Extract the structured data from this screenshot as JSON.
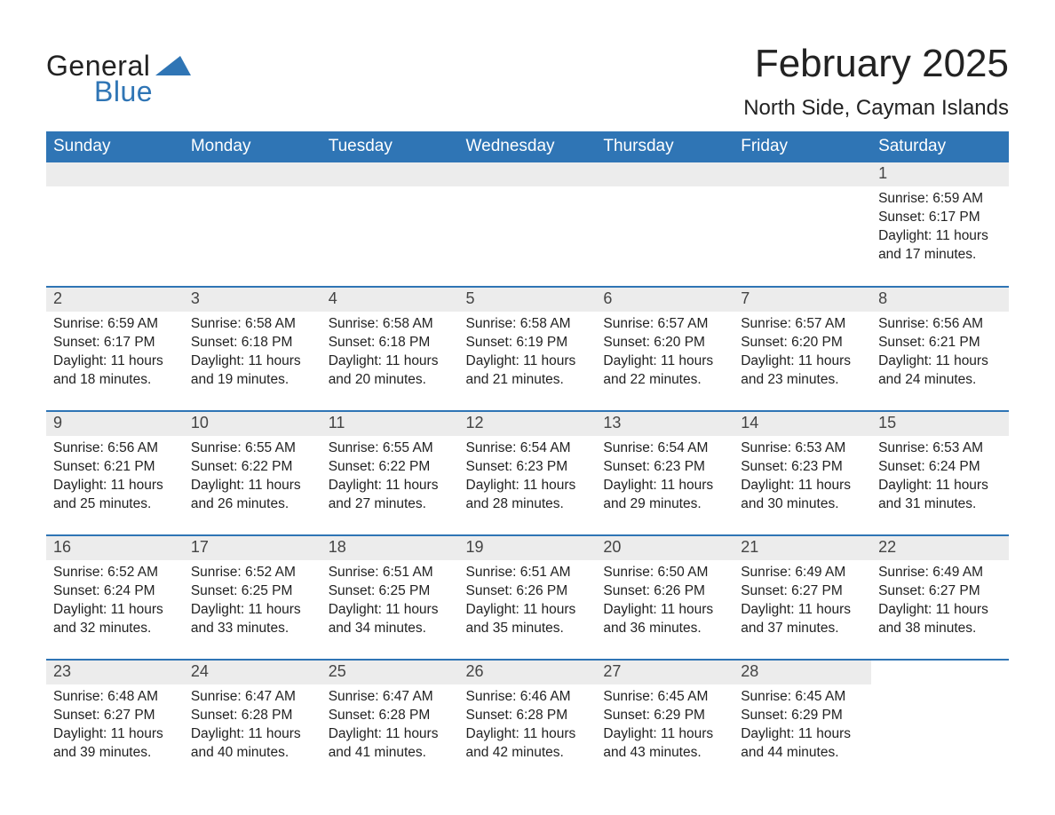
{
  "logo": {
    "text1": "General",
    "text2": "Blue"
  },
  "title": "February 2025",
  "location": "North Side, Cayman Islands",
  "colors": {
    "header_bg": "#2f75b5",
    "header_text": "#ffffff",
    "daynum_bg": "#ececec",
    "row_divider": "#2f75b5",
    "text": "#222222",
    "logo_accent": "#2f75b5"
  },
  "day_headers": [
    "Sunday",
    "Monday",
    "Tuesday",
    "Wednesday",
    "Thursday",
    "Friday",
    "Saturday"
  ],
  "weeks": [
    [
      null,
      null,
      null,
      null,
      null,
      null,
      {
        "n": "1",
        "sunrise": "Sunrise: 6:59 AM",
        "sunset": "Sunset: 6:17 PM",
        "daylight": "Daylight: 11 hours and 17 minutes."
      }
    ],
    [
      {
        "n": "2",
        "sunrise": "Sunrise: 6:59 AM",
        "sunset": "Sunset: 6:17 PM",
        "daylight": "Daylight: 11 hours and 18 minutes."
      },
      {
        "n": "3",
        "sunrise": "Sunrise: 6:58 AM",
        "sunset": "Sunset: 6:18 PM",
        "daylight": "Daylight: 11 hours and 19 minutes."
      },
      {
        "n": "4",
        "sunrise": "Sunrise: 6:58 AM",
        "sunset": "Sunset: 6:18 PM",
        "daylight": "Daylight: 11 hours and 20 minutes."
      },
      {
        "n": "5",
        "sunrise": "Sunrise: 6:58 AM",
        "sunset": "Sunset: 6:19 PM",
        "daylight": "Daylight: 11 hours and 21 minutes."
      },
      {
        "n": "6",
        "sunrise": "Sunrise: 6:57 AM",
        "sunset": "Sunset: 6:20 PM",
        "daylight": "Daylight: 11 hours and 22 minutes."
      },
      {
        "n": "7",
        "sunrise": "Sunrise: 6:57 AM",
        "sunset": "Sunset: 6:20 PM",
        "daylight": "Daylight: 11 hours and 23 minutes."
      },
      {
        "n": "8",
        "sunrise": "Sunrise: 6:56 AM",
        "sunset": "Sunset: 6:21 PM",
        "daylight": "Daylight: 11 hours and 24 minutes."
      }
    ],
    [
      {
        "n": "9",
        "sunrise": "Sunrise: 6:56 AM",
        "sunset": "Sunset: 6:21 PM",
        "daylight": "Daylight: 11 hours and 25 minutes."
      },
      {
        "n": "10",
        "sunrise": "Sunrise: 6:55 AM",
        "sunset": "Sunset: 6:22 PM",
        "daylight": "Daylight: 11 hours and 26 minutes."
      },
      {
        "n": "11",
        "sunrise": "Sunrise: 6:55 AM",
        "sunset": "Sunset: 6:22 PM",
        "daylight": "Daylight: 11 hours and 27 minutes."
      },
      {
        "n": "12",
        "sunrise": "Sunrise: 6:54 AM",
        "sunset": "Sunset: 6:23 PM",
        "daylight": "Daylight: 11 hours and 28 minutes."
      },
      {
        "n": "13",
        "sunrise": "Sunrise: 6:54 AM",
        "sunset": "Sunset: 6:23 PM",
        "daylight": "Daylight: 11 hours and 29 minutes."
      },
      {
        "n": "14",
        "sunrise": "Sunrise: 6:53 AM",
        "sunset": "Sunset: 6:23 PM",
        "daylight": "Daylight: 11 hours and 30 minutes."
      },
      {
        "n": "15",
        "sunrise": "Sunrise: 6:53 AM",
        "sunset": "Sunset: 6:24 PM",
        "daylight": "Daylight: 11 hours and 31 minutes."
      }
    ],
    [
      {
        "n": "16",
        "sunrise": "Sunrise: 6:52 AM",
        "sunset": "Sunset: 6:24 PM",
        "daylight": "Daylight: 11 hours and 32 minutes."
      },
      {
        "n": "17",
        "sunrise": "Sunrise: 6:52 AM",
        "sunset": "Sunset: 6:25 PM",
        "daylight": "Daylight: 11 hours and 33 minutes."
      },
      {
        "n": "18",
        "sunrise": "Sunrise: 6:51 AM",
        "sunset": "Sunset: 6:25 PM",
        "daylight": "Daylight: 11 hours and 34 minutes."
      },
      {
        "n": "19",
        "sunrise": "Sunrise: 6:51 AM",
        "sunset": "Sunset: 6:26 PM",
        "daylight": "Daylight: 11 hours and 35 minutes."
      },
      {
        "n": "20",
        "sunrise": "Sunrise: 6:50 AM",
        "sunset": "Sunset: 6:26 PM",
        "daylight": "Daylight: 11 hours and 36 minutes."
      },
      {
        "n": "21",
        "sunrise": "Sunrise: 6:49 AM",
        "sunset": "Sunset: 6:27 PM",
        "daylight": "Daylight: 11 hours and 37 minutes."
      },
      {
        "n": "22",
        "sunrise": "Sunrise: 6:49 AM",
        "sunset": "Sunset: 6:27 PM",
        "daylight": "Daylight: 11 hours and 38 minutes."
      }
    ],
    [
      {
        "n": "23",
        "sunrise": "Sunrise: 6:48 AM",
        "sunset": "Sunset: 6:27 PM",
        "daylight": "Daylight: 11 hours and 39 minutes."
      },
      {
        "n": "24",
        "sunrise": "Sunrise: 6:47 AM",
        "sunset": "Sunset: 6:28 PM",
        "daylight": "Daylight: 11 hours and 40 minutes."
      },
      {
        "n": "25",
        "sunrise": "Sunrise: 6:47 AM",
        "sunset": "Sunset: 6:28 PM",
        "daylight": "Daylight: 11 hours and 41 minutes."
      },
      {
        "n": "26",
        "sunrise": "Sunrise: 6:46 AM",
        "sunset": "Sunset: 6:28 PM",
        "daylight": "Daylight: 11 hours and 42 minutes."
      },
      {
        "n": "27",
        "sunrise": "Sunrise: 6:45 AM",
        "sunset": "Sunset: 6:29 PM",
        "daylight": "Daylight: 11 hours and 43 minutes."
      },
      {
        "n": "28",
        "sunrise": "Sunrise: 6:45 AM",
        "sunset": "Sunset: 6:29 PM",
        "daylight": "Daylight: 11 hours and 44 minutes."
      },
      null
    ]
  ]
}
